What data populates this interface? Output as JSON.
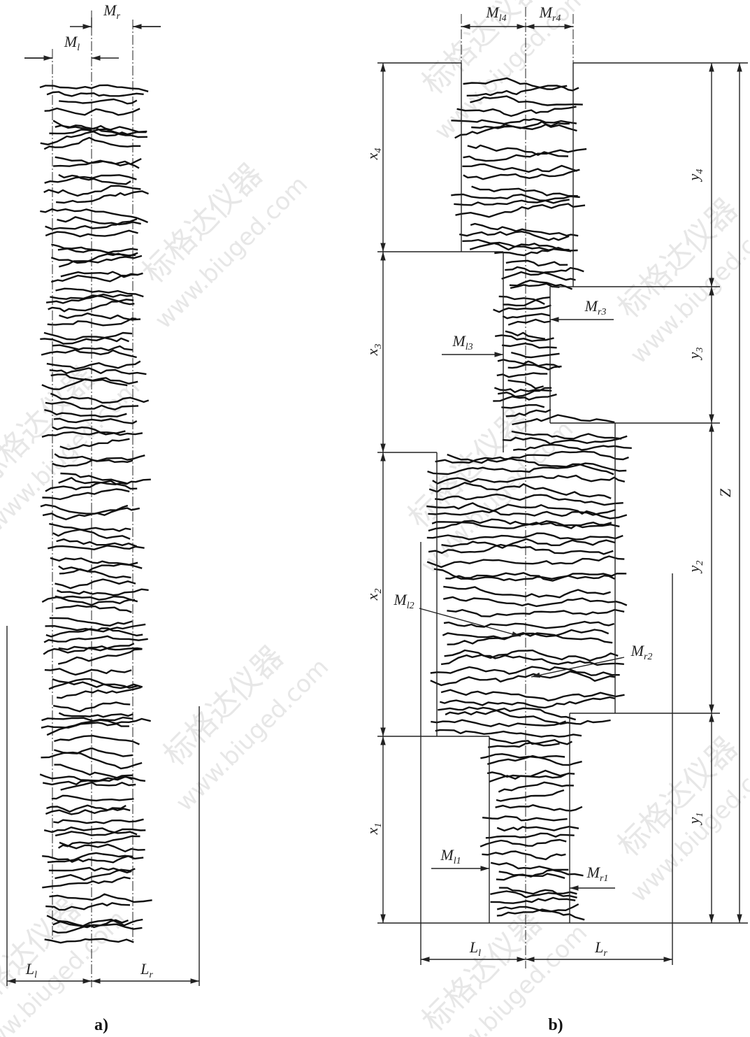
{
  "panel_a": {
    "caption": "a)",
    "labels": {
      "Ml": {
        "symbol": "M",
        "subscript": "l"
      },
      "Mr": {
        "symbol": "M",
        "subscript": "r"
      },
      "Ll": {
        "symbol": "L",
        "subscript": "l"
      },
      "Lr": {
        "symbol": "L",
        "subscript": "r"
      }
    }
  },
  "panel_b": {
    "caption": "b)",
    "labels": {
      "Ml4": {
        "symbol": "M",
        "subscript": "l4"
      },
      "Mr4": {
        "symbol": "M",
        "subscript": "r4"
      },
      "x4": {
        "symbol": "x",
        "subscript": "4"
      },
      "y4": {
        "symbol": "y",
        "subscript": "4"
      },
      "Mr3": {
        "symbol": "M",
        "subscript": "r3"
      },
      "Ml3": {
        "symbol": "M",
        "subscript": "l3"
      },
      "x3": {
        "symbol": "x",
        "subscript": "3"
      },
      "y3": {
        "symbol": "y",
        "subscript": "3"
      },
      "Z": {
        "symbol": "Z",
        "subscript": ""
      },
      "y2": {
        "symbol": "y",
        "subscript": "2"
      },
      "x2": {
        "symbol": "x",
        "subscript": "2"
      },
      "Ml2": {
        "symbol": "M",
        "subscript": "l2"
      },
      "Mr2": {
        "symbol": "M",
        "subscript": "r2"
      },
      "x1": {
        "symbol": "x",
        "subscript": "1"
      },
      "y1": {
        "symbol": "y",
        "subscript": "1"
      },
      "Ml1": {
        "symbol": "M",
        "subscript": "l1"
      },
      "Mr1": {
        "symbol": "M",
        "subscript": "r1"
      },
      "Ll": {
        "symbol": "L",
        "subscript": "l"
      },
      "Lr": {
        "symbol": "L",
        "subscript": "r"
      }
    }
  },
  "watermark": {
    "brand": "标格达仪器",
    "url": "www.biuged.com"
  }
}
